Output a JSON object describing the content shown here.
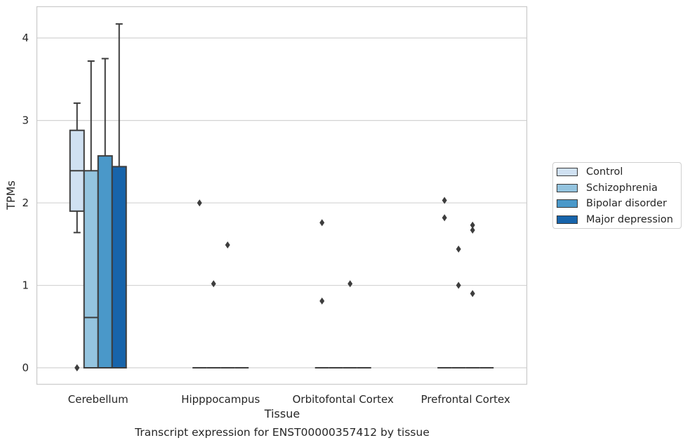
{
  "chart_data": {
    "type": "box",
    "title": "Transcript expression for ENST00000357412 by tissue",
    "xlabel": "Tissue",
    "ylabel": "TPMs",
    "ylim": [
      -0.2,
      4.38
    ],
    "yticks": [
      0,
      1,
      2,
      3,
      4
    ],
    "grid": "horizontal",
    "legend_position": "right",
    "categories": [
      "Cerebellum",
      "Hipppocampus",
      "Orbitofontal Cortex",
      "Prefrontal Cortex"
    ],
    "series": [
      {
        "name": "Control",
        "color": "#d0e1f2",
        "boxes": [
          {
            "q1": 1.9,
            "median": 2.39,
            "q3": 2.88,
            "whisker_low": 1.64,
            "whisker_high": 3.21,
            "outliers": [
              0.0,
              0.0
            ]
          },
          {
            "q1": 0,
            "median": 0,
            "q3": 0,
            "whisker_low": 0,
            "whisker_high": 0,
            "outliers": [
              2.0
            ]
          },
          {
            "q1": 0,
            "median": 0,
            "q3": 0,
            "whisker_low": 0,
            "whisker_high": 0,
            "outliers": [
              1.76,
              0.81
            ]
          },
          {
            "q1": 0,
            "median": 0,
            "q3": 0,
            "whisker_low": 0,
            "whisker_high": 0,
            "outliers": [
              2.03,
              1.82
            ]
          }
        ]
      },
      {
        "name": "Schizophrenia",
        "color": "#94c4df",
        "boxes": [
          {
            "q1": 0.0,
            "median": 0.61,
            "q3": 2.39,
            "whisker_low": 0.0,
            "whisker_high": 3.72,
            "outliers": []
          },
          {
            "q1": 0,
            "median": 0,
            "q3": 0,
            "whisker_low": 0,
            "whisker_high": 0,
            "outliers": [
              1.02
            ]
          },
          {
            "q1": 0,
            "median": 0,
            "q3": 0,
            "whisker_low": 0,
            "whisker_high": 0,
            "outliers": []
          },
          {
            "q1": 0,
            "median": 0,
            "q3": 0,
            "whisker_low": 0,
            "whisker_high": 0,
            "outliers": [
              1.44,
              1.0
            ]
          }
        ]
      },
      {
        "name": "Bipolar disorder",
        "color": "#4a98c9",
        "boxes": [
          {
            "q1": 0.0,
            "median": 0.0,
            "q3": 2.57,
            "whisker_low": 0.0,
            "whisker_high": 3.75,
            "outliers": []
          },
          {
            "q1": 0,
            "median": 0,
            "q3": 0,
            "whisker_low": 0,
            "whisker_high": 0,
            "outliers": [
              1.49
            ]
          },
          {
            "q1": 0,
            "median": 0,
            "q3": 0,
            "whisker_low": 0,
            "whisker_high": 0,
            "outliers": [
              1.02
            ]
          },
          {
            "q1": 0,
            "median": 0,
            "q3": 0,
            "whisker_low": 0,
            "whisker_high": 0,
            "outliers": [
              1.73,
              1.67,
              0.9
            ]
          }
        ]
      },
      {
        "name": "Major depression",
        "color": "#1764ab",
        "boxes": [
          {
            "q1": 0.0,
            "median": 0.0,
            "q3": 2.44,
            "whisker_low": 0.0,
            "whisker_high": 4.17,
            "outliers": []
          },
          {
            "q1": 0,
            "median": 0,
            "q3": 0,
            "whisker_low": 0,
            "whisker_high": 0,
            "outliers": []
          },
          {
            "q1": 0,
            "median": 0,
            "q3": 0,
            "whisker_low": 0,
            "whisker_high": 0,
            "outliers": []
          },
          {
            "q1": 0,
            "median": 0,
            "q3": 0,
            "whisker_low": 0,
            "whisker_high": 0,
            "outliers": []
          }
        ]
      }
    ]
  }
}
